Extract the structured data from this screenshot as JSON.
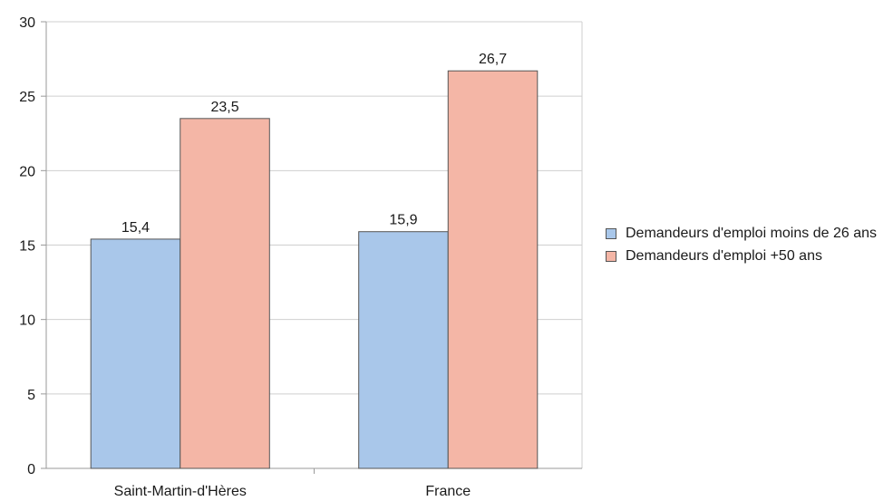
{
  "chart_data": {
    "type": "bar",
    "categories": [
      "Saint-Martin-d'Hères",
      "France"
    ],
    "series": [
      {
        "name": "Demandeurs d'emploi moins de 26 ans",
        "values": [
          15.4,
          15.9
        ],
        "labels": [
          "15,4",
          "15,9"
        ],
        "color": "#a9c7ea"
      },
      {
        "name": "Demandeurs d'emploi +50 ans",
        "values": [
          23.5,
          26.7
        ],
        "labels": [
          "23,5",
          "26,7"
        ],
        "color": "#f4b6a6"
      }
    ],
    "ylim": [
      0,
      30
    ],
    "yticks": [
      "0",
      "5",
      "10",
      "15",
      "20",
      "25",
      "30"
    ],
    "grid": true,
    "legend_position": "right"
  }
}
